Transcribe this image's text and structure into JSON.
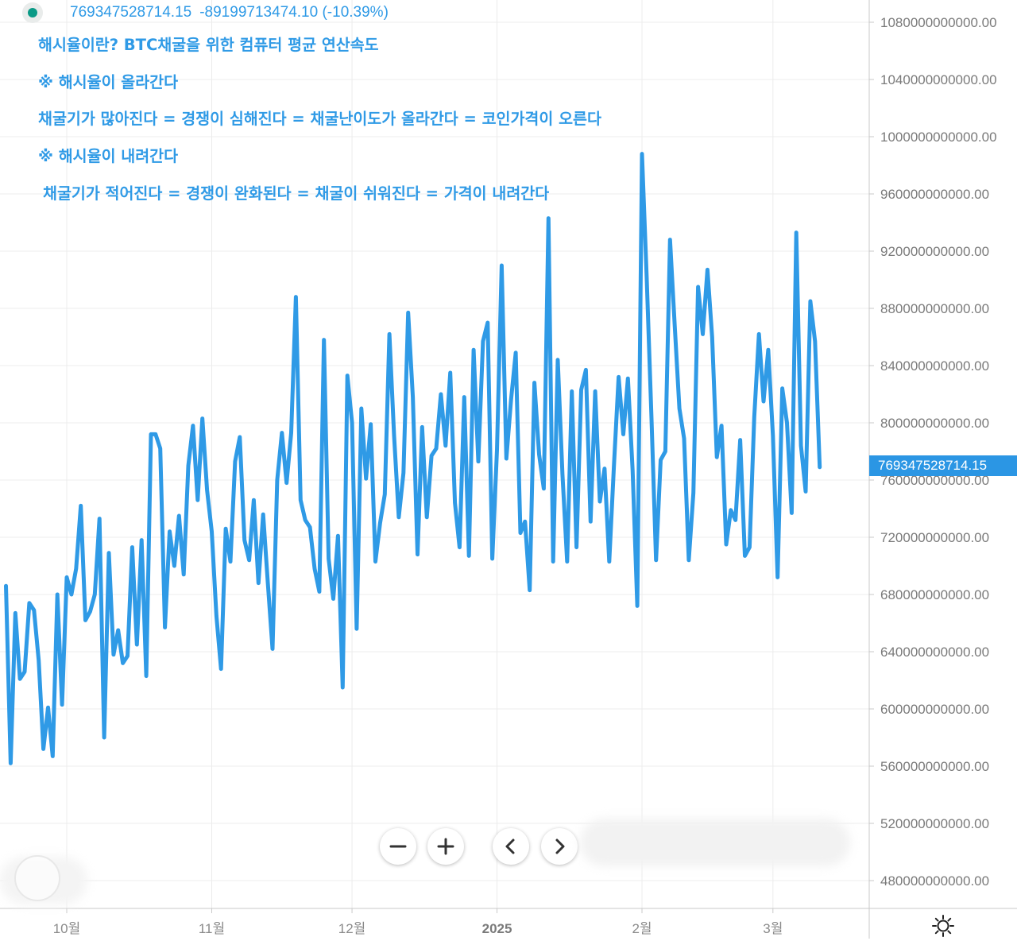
{
  "legend": {
    "value": "769347528714.15",
    "change": "-89199713474.10 (-10.39%)",
    "dot_color": "#0a9a86"
  },
  "annotations": [
    "해시율이란? BTC채굴을 위한 컴퓨터 평균 연산속도",
    "※ 해시율이 올라간다",
    "채굴기가 많아진다 = 경쟁이 심해진다 = 채굴난이도가 올라간다 = 코인가격이 오른다",
    "※ 해시율이 내려간다",
    "채굴기가 적어진다 = 경쟁이 완화된다 = 채굴이 쉬워진다 = 가격이 내려간다"
  ],
  "price_label": "769347528714.15",
  "controls": {
    "zoom_out_icon": "minus-icon",
    "zoom_in_icon": "plus-icon",
    "prev_icon": "chevron-left-icon",
    "next_icon": "chevron-right-icon",
    "settings_icon": "sun-gear-icon"
  },
  "colors": {
    "line": "#2f9ae6",
    "text": "#2f9ae6",
    "price_tag": "#2b96e4"
  },
  "chart_data": {
    "type": "line",
    "title": "",
    "xlabel": "",
    "ylabel": "",
    "ylim": [
      460000000000,
      1100000000000
    ],
    "grid": true,
    "y_axis_position": "right",
    "y_ticks": [
      "1080000000000.00",
      "1040000000000.00",
      "1000000000000.00",
      "960000000000.00",
      "920000000000.00",
      "880000000000.00",
      "840000000000.00",
      "800000000000.00",
      "760000000000.00",
      "720000000000.00",
      "680000000000.00",
      "640000000000.00",
      "600000000000.00",
      "560000000000.00",
      "520000000000.00",
      "480000000000.00"
    ],
    "x_ticks": [
      {
        "label": "10월",
        "date": "2024-10-01",
        "bold": false
      },
      {
        "label": "11월",
        "date": "2024-11-01",
        "bold": false
      },
      {
        "label": "12월",
        "date": "2024-12-01",
        "bold": false
      },
      {
        "label": "2025",
        "date": "2025-01-01",
        "bold": true
      },
      {
        "label": "2월",
        "date": "2025-02-01",
        "bold": false
      },
      {
        "label": "3월",
        "date": "2025-03-01",
        "bold": false
      }
    ],
    "series": [
      {
        "x": [
          "2024-09-18",
          "2024-09-19",
          "2024-09-20",
          "2024-09-21",
          "2024-09-22",
          "2024-09-23",
          "2024-09-24",
          "2024-09-25",
          "2024-09-26",
          "2024-09-27",
          "2024-09-28",
          "2024-09-29",
          "2024-09-30",
          "2024-10-01",
          "2024-10-02",
          "2024-10-03",
          "2024-10-04",
          "2024-10-05",
          "2024-10-06",
          "2024-10-07",
          "2024-10-08",
          "2024-10-09",
          "2024-10-10",
          "2024-10-11",
          "2024-10-12",
          "2024-10-13",
          "2024-10-14",
          "2024-10-15",
          "2024-10-16",
          "2024-10-17",
          "2024-10-18",
          "2024-10-19",
          "2024-10-20",
          "2024-10-21",
          "2024-10-22",
          "2024-10-23",
          "2024-10-24",
          "2024-10-25",
          "2024-10-26",
          "2024-10-27",
          "2024-10-28",
          "2024-10-29",
          "2024-10-30",
          "2024-10-31",
          "2024-11-01",
          "2024-11-02",
          "2024-11-03",
          "2024-11-04",
          "2024-11-05",
          "2024-11-06",
          "2024-11-07",
          "2024-11-08",
          "2024-11-09",
          "2024-11-10",
          "2024-11-11",
          "2024-11-12",
          "2024-11-13",
          "2024-11-14",
          "2024-11-15",
          "2024-11-16",
          "2024-11-17",
          "2024-11-18",
          "2024-11-19",
          "2024-11-20",
          "2024-11-21",
          "2024-11-22",
          "2024-11-23",
          "2024-11-24",
          "2024-11-25",
          "2024-11-26",
          "2024-11-27",
          "2024-11-28",
          "2024-11-29",
          "2024-11-30",
          "2024-12-01",
          "2024-12-02",
          "2024-12-03",
          "2024-12-04",
          "2024-12-05",
          "2024-12-06",
          "2024-12-07",
          "2024-12-08",
          "2024-12-09",
          "2024-12-10",
          "2024-12-11",
          "2024-12-12",
          "2024-12-13",
          "2024-12-14",
          "2024-12-15",
          "2024-12-16",
          "2024-12-17",
          "2024-12-18",
          "2024-12-19",
          "2024-12-20",
          "2024-12-21",
          "2024-12-22",
          "2024-12-23",
          "2024-12-24",
          "2024-12-25",
          "2024-12-26",
          "2024-12-27",
          "2024-12-28",
          "2024-12-29",
          "2024-12-30",
          "2024-12-31",
          "2025-01-01",
          "2025-01-02",
          "2025-01-03",
          "2025-01-04",
          "2025-01-05",
          "2025-01-06",
          "2025-01-07",
          "2025-01-08",
          "2025-01-09",
          "2025-01-10",
          "2025-01-11",
          "2025-01-12",
          "2025-01-13",
          "2025-01-14",
          "2025-01-15",
          "2025-01-16",
          "2025-01-17",
          "2025-01-18",
          "2025-01-19",
          "2025-01-20",
          "2025-01-21",
          "2025-01-22",
          "2025-01-23",
          "2025-01-24",
          "2025-01-25",
          "2025-01-26",
          "2025-01-27",
          "2025-01-28",
          "2025-01-29",
          "2025-01-30",
          "2025-01-31",
          "2025-02-01",
          "2025-02-02",
          "2025-02-03",
          "2025-02-04",
          "2025-02-05",
          "2025-02-06",
          "2025-02-07",
          "2025-02-08",
          "2025-02-09",
          "2025-02-10",
          "2025-02-11",
          "2025-02-12",
          "2025-02-13",
          "2025-02-14",
          "2025-02-15",
          "2025-02-16",
          "2025-02-17",
          "2025-02-18",
          "2025-02-19",
          "2025-02-20",
          "2025-02-21",
          "2025-02-22",
          "2025-02-23",
          "2025-02-24",
          "2025-02-25",
          "2025-02-26",
          "2025-02-27",
          "2025-02-28",
          "2025-03-01",
          "2025-03-02",
          "2025-03-03",
          "2025-03-04",
          "2025-03-05",
          "2025-03-06",
          "2025-03-07",
          "2025-03-08",
          "2025-03-09",
          "2025-03-10",
          "2025-03-11"
        ],
        "y": [
          686000000000,
          562000000000,
          667000000000,
          621000000000,
          626000000000,
          674000000000,
          669000000000,
          634000000000,
          572000000000,
          601000000000,
          567000000000,
          680000000000,
          603000000000,
          692000000000,
          680000000000,
          698000000000,
          742000000000,
          662000000000,
          668000000000,
          680000000000,
          733000000000,
          580000000000,
          709000000000,
          638000000000,
          655000000000,
          632000000000,
          637000000000,
          713000000000,
          645000000000,
          718000000000,
          623000000000,
          792000000000,
          792000000000,
          782000000000,
          657000000000,
          724000000000,
          700000000000,
          735000000000,
          694000000000,
          770000000000,
          798000000000,
          746000000000,
          803000000000,
          753000000000,
          724000000000,
          665000000000,
          628000000000,
          726000000000,
          703000000000,
          773000000000,
          790000000000,
          718000000000,
          704000000000,
          746000000000,
          688000000000,
          736000000000,
          688000000000,
          642000000000,
          760000000000,
          793000000000,
          758000000000,
          793000000000,
          888000000000,
          746000000000,
          732000000000,
          727000000000,
          698000000000,
          682000000000,
          858000000000,
          705000000000,
          677000000000,
          721000000000,
          615000000000,
          833000000000,
          800000000000,
          656000000000,
          810000000000,
          761000000000,
          799000000000,
          703000000000,
          730000000000,
          750000000000,
          862000000000,
          791000000000,
          734000000000,
          765000000000,
          877000000000,
          818000000000,
          708000000000,
          797000000000,
          734000000000,
          777000000000,
          782000000000,
          820000000000,
          784000000000,
          835000000000,
          744000000000,
          713000000000,
          818000000000,
          707000000000,
          851000000000,
          773000000000,
          857000000000,
          870000000000,
          705000000000,
          781000000000,
          910000000000,
          775000000000,
          816000000000,
          849000000000,
          723000000000,
          731000000000,
          683000000000,
          828000000000,
          778000000000,
          754000000000,
          943000000000,
          703000000000,
          844000000000,
          764000000000,
          703000000000,
          822000000000,
          713000000000,
          823000000000,
          837000000000,
          731000000000,
          822000000000,
          745000000000,
          768000000000,
          703000000000,
          770000000000,
          832000000000,
          792000000000,
          831000000000,
          767000000000,
          672000000000,
          988000000000,
          902000000000,
          806000000000,
          704000000000,
          774000000000,
          780000000000,
          928000000000,
          868000000000,
          810000000000,
          789000000000,
          704000000000,
          751000000000,
          895000000000,
          862000000000,
          907000000000,
          860000000000,
          776000000000,
          798000000000,
          715000000000,
          739000000000,
          732000000000,
          788000000000,
          707000000000,
          713000000000,
          804000000000,
          862000000000,
          815000000000,
          851000000000,
          791000000000,
          692000000000,
          824000000000,
          800000000000,
          737000000000,
          933000000000,
          784000000000,
          752000000000,
          885000000000,
          857000000000,
          769000000000
        ]
      }
    ]
  }
}
